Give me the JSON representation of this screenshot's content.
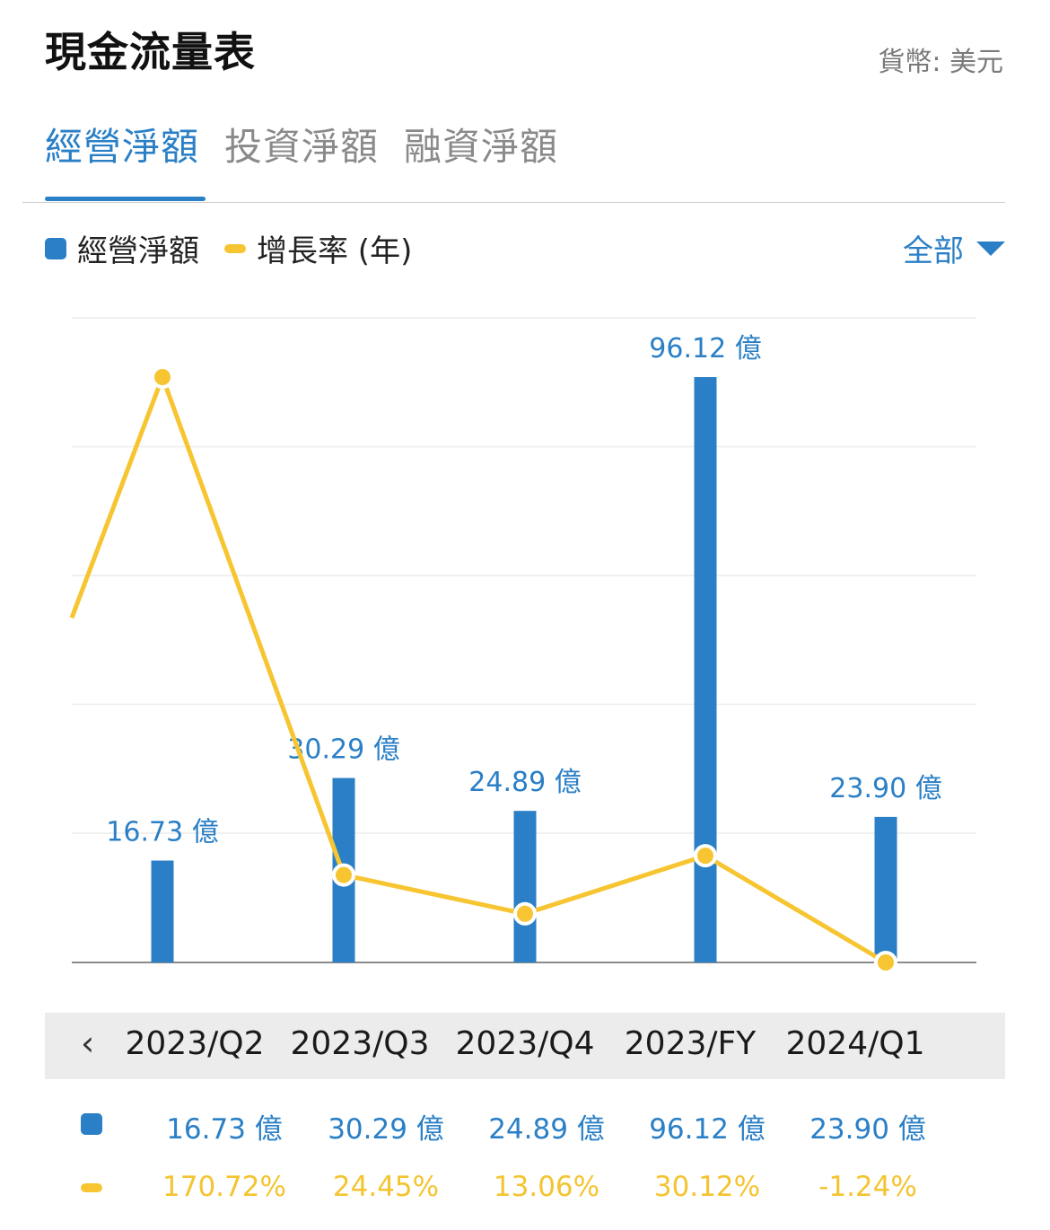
{
  "header": {
    "title": "現金流量表",
    "currency": "貨幣: 美元"
  },
  "tabs": [
    {
      "label": "經營淨額",
      "active": true
    },
    {
      "label": "投資淨額",
      "active": false
    },
    {
      "label": "融資淨額",
      "active": false
    }
  ],
  "legend": {
    "bar_label": "經營淨額",
    "line_label": "增長率 (年)"
  },
  "filter": {
    "label": "全部"
  },
  "colors": {
    "bar": "#2a7fc6",
    "line": "#f7c531",
    "accent": "#2a7fc6"
  },
  "chart_data": {
    "type": "bar",
    "categories": [
      "2023/Q2",
      "2023/Q3",
      "2023/Q4",
      "2023/FY",
      "2024/Q1"
    ],
    "series": [
      {
        "name": "經營淨額",
        "type": "bar",
        "values": [
          16.73,
          30.29,
          24.89,
          96.12,
          23.9
        ],
        "labels": [
          "16.73 億",
          "30.29 億",
          "24.89 億",
          "96.12 億",
          "23.90 億"
        ]
      },
      {
        "name": "增長率 (年)",
        "type": "line",
        "values": [
          170.72,
          24.45,
          13.06,
          30.12,
          -1.24
        ]
      }
    ],
    "grid": true
  },
  "periods": {
    "prev_icon": "chevron-left-icon",
    "items": [
      "2023/Q2",
      "2023/Q3",
      "2023/Q4",
      "2023/FY",
      "2024/Q1"
    ]
  },
  "table": {
    "bar_row": [
      "16.73 億",
      "30.29 億",
      "24.89 億",
      "96.12 億",
      "23.90 億"
    ],
    "growth_row": [
      "170.72%",
      "24.45%",
      "13.06%",
      "30.12%",
      "-1.24%"
    ]
  }
}
